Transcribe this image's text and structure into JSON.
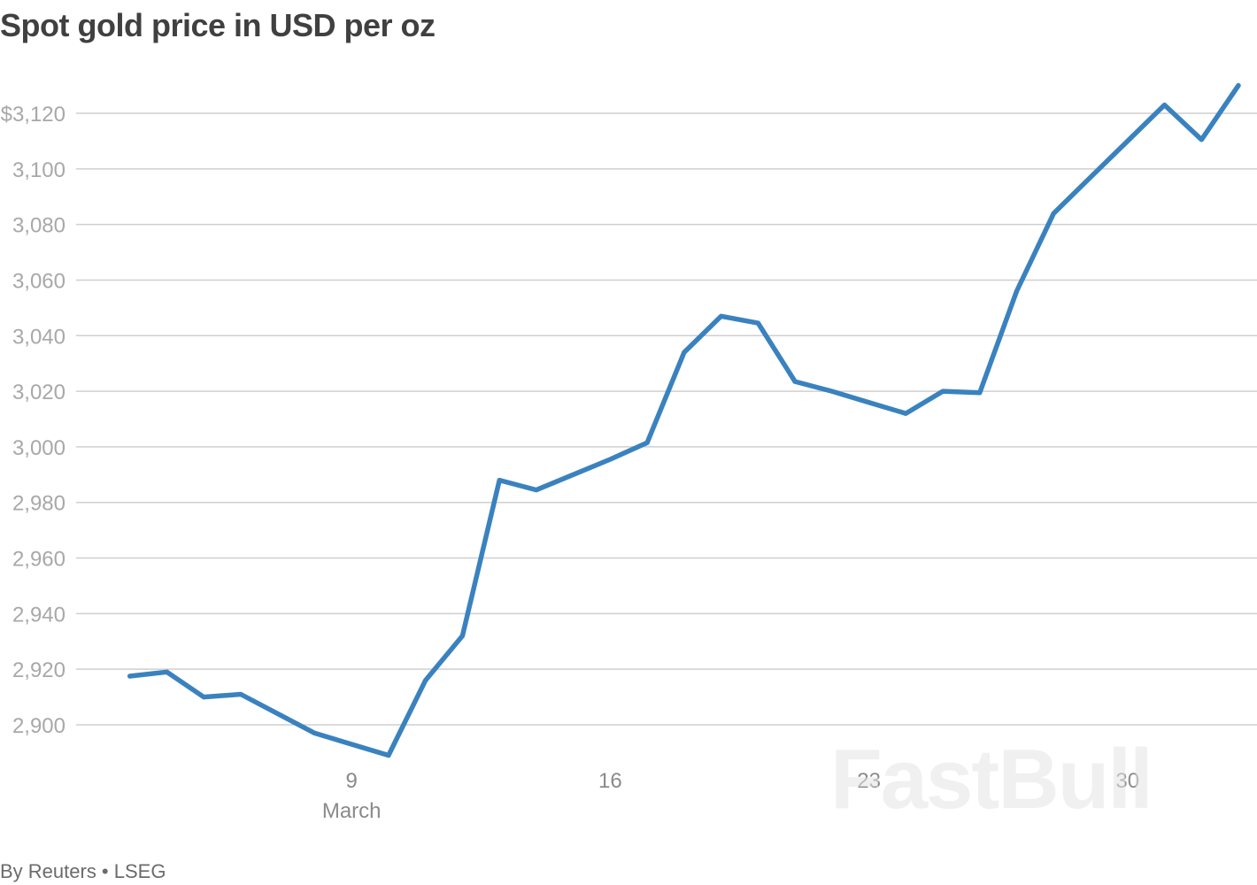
{
  "chart_data": {
    "type": "line",
    "title": "Spot gold price in USD per oz",
    "xlabel": "",
    "ylabel": "",
    "ylim": [
      2880,
      3135
    ],
    "y_ticks": [
      {
        "value": 3120,
        "label": "$3,120"
      },
      {
        "value": 3100,
        "label": "3,100"
      },
      {
        "value": 3080,
        "label": "3,080"
      },
      {
        "value": 3060,
        "label": "3,060"
      },
      {
        "value": 3040,
        "label": "3,040"
      },
      {
        "value": 3020,
        "label": "3,020"
      },
      {
        "value": 3000,
        "label": "3,000"
      },
      {
        "value": 2980,
        "label": "2,980"
      },
      {
        "value": 2960,
        "label": "2,960"
      },
      {
        "value": 2940,
        "label": "2,940"
      },
      {
        "value": 2920,
        "label": "2,920"
      },
      {
        "value": 2900,
        "label": "2,900"
      }
    ],
    "x_ticks": [
      {
        "date": "2025-03-09",
        "label": "9",
        "sublabel": "March"
      },
      {
        "date": "2025-03-16",
        "label": "16",
        "sublabel": ""
      },
      {
        "date": "2025-03-23",
        "label": "23",
        "sublabel": ""
      },
      {
        "date": "2025-03-30",
        "label": "30",
        "sublabel": ""
      }
    ],
    "xlim": [
      "2025-03-02",
      "2025-04-02"
    ],
    "grid": true,
    "legend": "none",
    "series": [
      {
        "color": "#3a82bf",
        "points": [
          {
            "x": "2025-03-03",
            "y": 2917.5
          },
          {
            "x": "2025-03-04",
            "y": 2919
          },
          {
            "x": "2025-03-05",
            "y": 2910
          },
          {
            "x": "2025-03-06",
            "y": 2911
          },
          {
            "x": "2025-03-07",
            "y": 2904
          },
          {
            "x": "2025-03-08",
            "y": 2897
          },
          {
            "x": "2025-03-10",
            "y": 2889
          },
          {
            "x": "2025-03-11",
            "y": 2916
          },
          {
            "x": "2025-03-12",
            "y": 2932
          },
          {
            "x": "2025-03-13",
            "y": 2988
          },
          {
            "x": "2025-03-14",
            "y": 2984.5
          },
          {
            "x": "2025-03-15",
            "y": 2990
          },
          {
            "x": "2025-03-16",
            "y": 2995.5
          },
          {
            "x": "2025-03-17",
            "y": 3001.5
          },
          {
            "x": "2025-03-18",
            "y": 3034
          },
          {
            "x": "2025-03-19",
            "y": 3047
          },
          {
            "x": "2025-03-20",
            "y": 3044.5
          },
          {
            "x": "2025-03-21",
            "y": 3023.5
          },
          {
            "x": "2025-03-22",
            "y": 3020
          },
          {
            "x": "2025-03-23",
            "y": 3016
          },
          {
            "x": "2025-03-24",
            "y": 3012
          },
          {
            "x": "2025-03-25",
            "y": 3020
          },
          {
            "x": "2025-03-26",
            "y": 3019.5
          },
          {
            "x": "2025-03-27",
            "y": 3056
          },
          {
            "x": "2025-03-28",
            "y": 3084
          },
          {
            "x": "2025-03-29",
            "y": 3097
          },
          {
            "x": "2025-03-30",
            "y": 3110
          },
          {
            "x": "2025-03-31",
            "y": 3123
          },
          {
            "x": "2025-04-01",
            "y": 3110.5
          },
          {
            "x": "2025-04-02",
            "y": 3130
          }
        ]
      }
    ]
  },
  "footer": {
    "source": "By Reuters • LSEG"
  },
  "watermark": {
    "text": "FastBull"
  }
}
